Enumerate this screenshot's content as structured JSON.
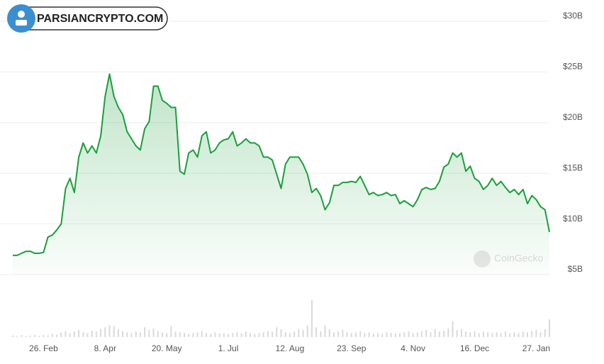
{
  "branding": {
    "logo_text": "PARSIANCRYPTO.COM"
  },
  "chart_data": {
    "type": "area",
    "watermark": "CoinGecko",
    "categories": [
      null,
      null,
      null,
      null,
      null,
      null,
      null,
      "26. Feb",
      null,
      null,
      null,
      null,
      null,
      null,
      null,
      null,
      null,
      null,
      null,
      null,
      null,
      "8. Apr",
      null,
      null,
      null,
      null,
      null,
      null,
      null,
      null,
      null,
      null,
      null,
      null,
      null,
      "20. May",
      null,
      null,
      null,
      null,
      null,
      null,
      null,
      null,
      null,
      null,
      null,
      null,
      null,
      "1. Jul",
      null,
      null,
      null,
      null,
      null,
      null,
      null,
      null,
      null,
      null,
      null,
      null,
      null,
      "12. Aug",
      null,
      null,
      null,
      null,
      null,
      null,
      null,
      null,
      null,
      null,
      null,
      null,
      null,
      "23. Sep",
      null,
      null,
      null,
      null,
      null,
      null,
      null,
      null,
      null,
      null,
      null,
      null,
      null,
      "4. Nov",
      null,
      null,
      null,
      null,
      null,
      null,
      null,
      null,
      null,
      null,
      null,
      null,
      null,
      "16. Dec",
      null,
      null,
      null,
      null,
      null,
      null,
      null,
      null,
      null,
      null,
      null,
      null,
      null,
      "27. Jan",
      null,
      null,
      null
    ],
    "series": [
      {
        "color": "#1a9f3a",
        "values": [
          6.9,
          6.9,
          7.1,
          7.3,
          7.3,
          7.1,
          7.1,
          7.2,
          8.7,
          8.9,
          9.4,
          10.0,
          13.5,
          14.5,
          13.1,
          16.6,
          18.0,
          17.0,
          17.7,
          17.0,
          18.7,
          22.6,
          24.8,
          22.6,
          21.5,
          20.8,
          19.1,
          18.4,
          17.7,
          17.3,
          19.4,
          20.1,
          23.6,
          23.6,
          22.2,
          21.9,
          21.5,
          21.5,
          15.2,
          14.9,
          17.0,
          17.3,
          16.6,
          18.7,
          19.1,
          17.0,
          17.3,
          18.0,
          18.3,
          18.4,
          19.1,
          17.7,
          18.0,
          18.4,
          18.0,
          18.0,
          17.7,
          16.6,
          16.6,
          16.3,
          14.9,
          13.5,
          15.9,
          16.6,
          16.6,
          16.6,
          15.9,
          14.9,
          13.1,
          13.5,
          12.8,
          11.4,
          12.1,
          13.8,
          13.8,
          14.1,
          14.1,
          14.2,
          14.1,
          14.7,
          13.8,
          12.9,
          13.1,
          12.8,
          12.9,
          13.1,
          12.8,
          12.9,
          12.0,
          12.3,
          12.0,
          11.7,
          12.4,
          13.4,
          13.6,
          13.4,
          13.5,
          14.2,
          15.6,
          15.9,
          17.0,
          16.6,
          17.0,
          15.2,
          15.7,
          14.5,
          14.2,
          13.4,
          13.8,
          14.5,
          13.8,
          14.2,
          13.6,
          13.1,
          13.4,
          12.9,
          13.4,
          12.0,
          12.8,
          12.4,
          11.7,
          11.4,
          9.2
        ]
      }
    ],
    "volume": {
      "color": "#d9d9d9",
      "axis": "y2",
      "values": [
        4,
        3,
        5,
        3,
        4,
        6,
        3,
        5,
        4,
        8,
        6,
        12,
        15,
        10,
        14,
        18,
        12,
        10,
        16,
        14,
        20,
        25,
        30,
        28,
        20,
        15,
        12,
        10,
        14,
        12,
        25,
        18,
        22,
        15,
        12,
        10,
        28,
        14,
        12,
        10,
        8,
        10,
        12,
        15,
        10,
        8,
        12,
        9,
        10,
        8,
        10,
        12,
        9,
        14,
        10,
        8,
        10,
        12,
        15,
        14,
        25,
        20,
        12,
        10,
        14,
        20,
        18,
        30,
        95,
        25,
        15,
        30,
        20,
        12,
        14,
        18,
        12,
        10,
        12,
        15,
        10,
        12,
        9,
        10,
        8,
        12,
        10,
        9,
        10,
        12,
        14,
        10,
        12,
        15,
        18,
        12,
        20,
        14,
        16,
        22,
        40,
        18,
        20,
        14,
        12,
        15,
        10,
        14,
        12,
        10,
        12,
        10,
        14,
        9,
        12,
        10,
        14,
        12,
        15,
        18,
        12,
        20,
        45
      ]
    },
    "ylim": [
      5,
      30
    ],
    "yticks": [
      {
        "value": 5,
        "label": "$5B"
      },
      {
        "value": 10,
        "label": "$10B"
      },
      {
        "value": 15,
        "label": "$15B"
      },
      {
        "value": 20,
        "label": "$20B"
      },
      {
        "value": 25,
        "label": "$25B"
      },
      {
        "value": 30,
        "label": "$30B"
      }
    ],
    "y2lim": [
      0,
      100
    ],
    "grid": true
  }
}
